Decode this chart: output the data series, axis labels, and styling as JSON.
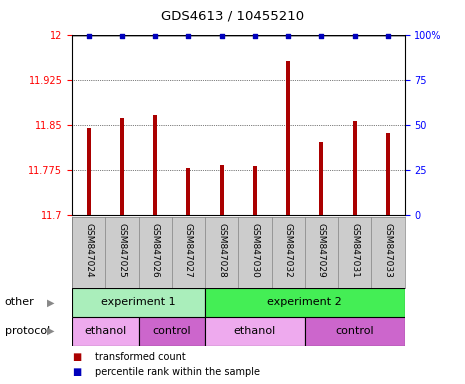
{
  "title": "GDS4613 / 10455210",
  "samples": [
    "GSM847024",
    "GSM847025",
    "GSM847026",
    "GSM847027",
    "GSM847028",
    "GSM847030",
    "GSM847032",
    "GSM847029",
    "GSM847031",
    "GSM847033"
  ],
  "bar_values": [
    11.845,
    11.862,
    11.867,
    11.778,
    11.783,
    11.782,
    11.956,
    11.822,
    11.857,
    11.836
  ],
  "percentile_values": [
    99,
    99,
    99,
    99,
    99,
    99,
    99,
    99,
    99,
    99
  ],
  "ylim_left": [
    11.7,
    12.0
  ],
  "ylim_right": [
    0,
    100
  ],
  "yticks_left": [
    11.7,
    11.775,
    11.85,
    11.925,
    12.0
  ],
  "ytick_labels_left": [
    "11.7",
    "11.775",
    "11.85",
    "11.925",
    "12"
  ],
  "yticks_right": [
    0,
    25,
    50,
    75,
    100
  ],
  "ytick_labels_right": [
    "0",
    "25",
    "50",
    "75",
    "100%"
  ],
  "bar_color": "#aa0000",
  "percentile_color": "#0000bb",
  "grid_color": "#444444",
  "groups": [
    {
      "label": "experiment 1",
      "start": 0,
      "end": 4,
      "color": "#aaeebb"
    },
    {
      "label": "experiment 2",
      "start": 4,
      "end": 10,
      "color": "#44ee55"
    }
  ],
  "protocols": [
    {
      "label": "ethanol",
      "start": 0,
      "end": 2,
      "color": "#eeaaee"
    },
    {
      "label": "control",
      "start": 2,
      "end": 4,
      "color": "#cc66cc"
    },
    {
      "label": "ethanol",
      "start": 4,
      "end": 7,
      "color": "#eeaaee"
    },
    {
      "label": "control",
      "start": 7,
      "end": 10,
      "color": "#cc66cc"
    }
  ],
  "legend_items": [
    {
      "label": "transformed count",
      "color": "#aa0000",
      "marker": "s"
    },
    {
      "label": "percentile rank within the sample",
      "color": "#0000bb",
      "marker": "s"
    }
  ],
  "label_row_color": "#cccccc",
  "other_label": "other",
  "protocol_label": "protocol",
  "background_color": "#ffffff",
  "bar_width": 0.12
}
